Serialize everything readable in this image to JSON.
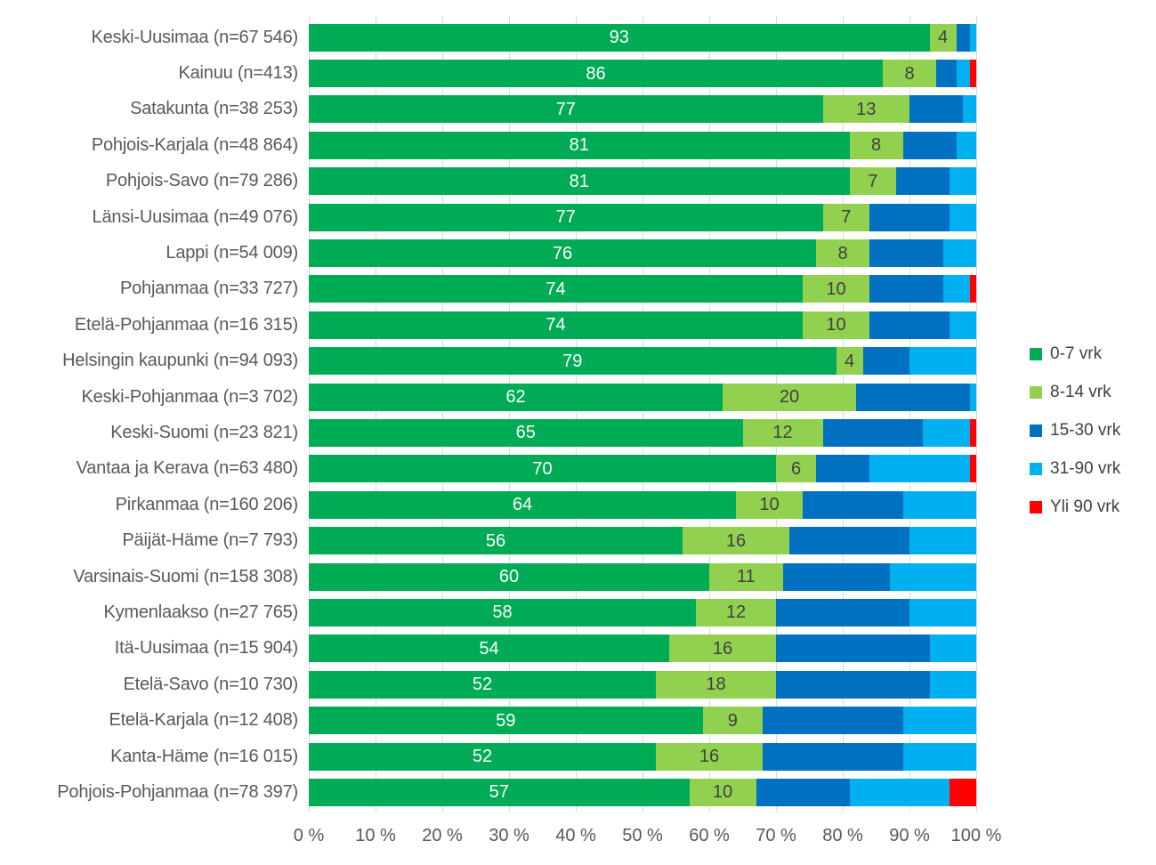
{
  "chart_data": {
    "type": "bar",
    "variant": "horizontal-stacked-percent",
    "title": "",
    "xlabel": "",
    "ylabel": "",
    "x_range": [
      0,
      100
    ],
    "grid": true,
    "x_ticks": [
      "0 %",
      "10 %",
      "20 %",
      "30 %",
      "40 %",
      "50 %",
      "60 %",
      "70 %",
      "80 %",
      "90 %",
      "100 %"
    ],
    "categories": [
      "Keski-Uusimaa (n=67 546)",
      "Kainuu (n=413)",
      "Satakunta (n=38 253)",
      "Pohjois-Karjala (n=48 864)",
      "Pohjois-Savo (n=79 286)",
      "Länsi-Uusimaa (n=49 076)",
      "Lappi (n=54 009)",
      "Pohjanmaa (n=33 727)",
      "Etelä-Pohjanmaa (n=16 315)",
      "Helsingin kaupunki (n=94 093)",
      "Keski-Pohjanmaa (n=3 702)",
      "Keski-Suomi (n=23 821)",
      "Vantaa ja Kerava (n=63 480)",
      "Pirkanmaa (n=160 206)",
      "Päijät-Häme (n=7 793)",
      "Varsinais-Suomi (n=158 308)",
      "Kymenlaakso (n=27 765)",
      "Itä-Uusimaa (n=15 904)",
      "Etelä-Savo (n=10 730)",
      "Etelä-Karjala (n=12 408)",
      "Kanta-Häme (n=16 015)",
      "Pohjois-Pohjanmaa (n=78 397)"
    ],
    "series": [
      {
        "name": "0-7 vrk",
        "color": "#00AB55",
        "show_labels": true,
        "label_color": "#ffffff",
        "values": [
          93,
          86,
          77,
          81,
          81,
          77,
          76,
          74,
          74,
          79,
          62,
          65,
          70,
          64,
          56,
          60,
          58,
          54,
          52,
          59,
          52,
          57
        ]
      },
      {
        "name": "8-14 vrk",
        "color": "#92D050",
        "show_labels": true,
        "label_color": "#404040",
        "values": [
          4,
          8,
          13,
          8,
          7,
          7,
          8,
          10,
          10,
          4,
          20,
          12,
          6,
          10,
          16,
          11,
          12,
          16,
          18,
          9,
          16,
          10
        ]
      },
      {
        "name": "15-30 vrk",
        "color": "#0070C0",
        "show_labels": false,
        "label_color": "",
        "values": [
          2,
          3,
          8,
          8,
          8,
          12,
          11,
          11,
          12,
          7,
          17,
          15,
          8,
          15,
          18,
          16,
          20,
          23,
          23,
          21,
          21,
          14
        ]
      },
      {
        "name": "31-90 vrk",
        "color": "#00B0F0",
        "show_labels": false,
        "label_color": "",
        "values": [
          1,
          2,
          2,
          3,
          4,
          4,
          5,
          4,
          4,
          10,
          1,
          7,
          15,
          11,
          10,
          13,
          10,
          7,
          7,
          11,
          11,
          15
        ]
      },
      {
        "name": "Yli 90 vrk",
        "color": "#FF0000",
        "show_labels": false,
        "label_color": "",
        "values": [
          0,
          1,
          0,
          0,
          0,
          0,
          0,
          1,
          0,
          0,
          0,
          1,
          1,
          0,
          0,
          0,
          0,
          0,
          0,
          0,
          0,
          4
        ]
      }
    ],
    "legend": {
      "position": "right",
      "entries": [
        "0-7 vrk",
        "8-14 vrk",
        "15-30 vrk",
        "31-90 vrk",
        "Yli 90 vrk"
      ]
    }
  },
  "colors": {
    "gridline": "#d9d9d9",
    "axis_text": "#595959",
    "category_text": "#595959",
    "legend_text": "#404040",
    "background": "#ffffff"
  }
}
